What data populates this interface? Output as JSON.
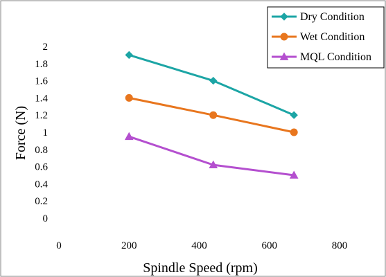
{
  "chart_data": {
    "type": "line",
    "title": "",
    "xlabel": "Spindle Speed (rpm)",
    "ylabel": "Force (N)",
    "xlim": [
      0,
      800
    ],
    "ylim": [
      0,
      2
    ],
    "xticks": [
      "0",
      "200",
      "400",
      "600",
      "800"
    ],
    "yticks": [
      "0",
      "0.2",
      "0.4",
      "0.6",
      "0.8",
      "1",
      "1.2",
      "1.4",
      "1.6",
      "1.8",
      "2"
    ],
    "grid": false,
    "legend_position": "top-right",
    "x": [
      200,
      440,
      670
    ],
    "series": [
      {
        "name": "Dry Condition",
        "values": [
          1.9,
          1.6,
          1.2
        ],
        "color": "#1ca5a5",
        "marker": "diamond"
      },
      {
        "name": "Wet Condition",
        "values": [
          1.4,
          1.2,
          1.0
        ],
        "color": "#e8761e",
        "marker": "circle"
      },
      {
        "name": "MQL Condition",
        "values": [
          0.95,
          0.62,
          0.5
        ],
        "color": "#b44fcf",
        "marker": "triangle"
      }
    ]
  }
}
